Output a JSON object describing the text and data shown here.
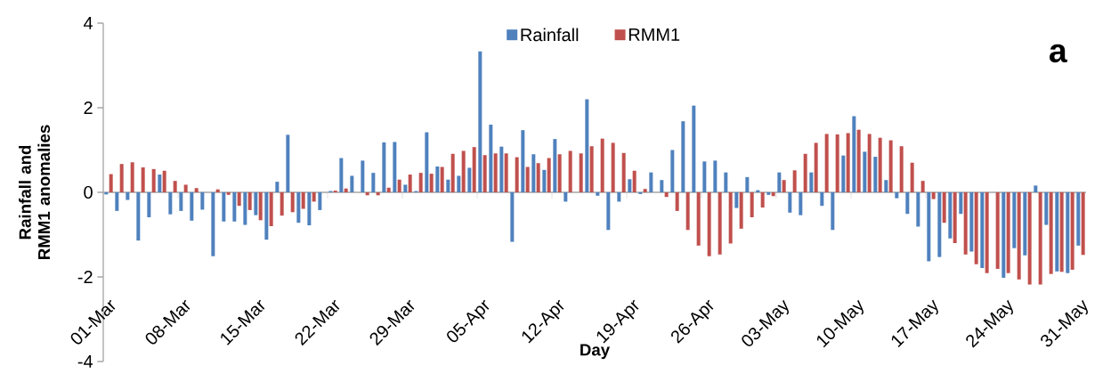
{
  "chart_data": {
    "type": "bar",
    "xlabel": "Day",
    "ylabel": "Rainfall and RMM1 anomalies",
    "categories": [
      "01-Mar",
      null,
      null,
      null,
      null,
      null,
      null,
      "08-Mar",
      null,
      null,
      null,
      null,
      null,
      null,
      "15-Mar",
      null,
      null,
      null,
      null,
      null,
      null,
      "22-Mar",
      null,
      null,
      null,
      null,
      null,
      null,
      "29-Mar",
      null,
      null,
      null,
      null,
      null,
      null,
      "05-Apr",
      null,
      null,
      null,
      null,
      null,
      null,
      "12-Apr",
      null,
      null,
      null,
      null,
      null,
      null,
      "19-Apr",
      null,
      null,
      null,
      null,
      null,
      null,
      "26-Apr",
      null,
      null,
      null,
      null,
      null,
      null,
      "03-May",
      null,
      null,
      null,
      null,
      null,
      null,
      "10-May",
      null,
      null,
      null,
      null,
      null,
      null,
      "17-May",
      null,
      null,
      null,
      null,
      null,
      null,
      "24-May",
      null,
      null,
      null,
      null,
      null,
      null,
      "31-May"
    ],
    "series": [
      {
        "name": "Rainfall",
        "color": "#4f81bd",
        "values": [
          -0.05,
          -0.44,
          -0.18,
          -1.14,
          -0.59,
          0.42,
          -0.52,
          -0.44,
          -0.67,
          -0.41,
          -1.51,
          -0.69,
          -0.69,
          -0.77,
          -0.54,
          -1.12,
          0.25,
          1.36,
          -0.72,
          -0.78,
          -0.42,
          0.03,
          0.81,
          0.39,
          0.75,
          0.46,
          1.18,
          1.19,
          0.18,
          0.03,
          1.42,
          0.61,
          0.3,
          0.39,
          0.58,
          3.33,
          1.6,
          1.08,
          -1.17,
          1.47,
          0.9,
          0.53,
          1.26,
          -0.22,
          0,
          2.2,
          -0.08,
          -0.89,
          -0.22,
          0.31,
          -0.04,
          0.47,
          0.29,
          1.0,
          1.68,
          2.05,
          0.73,
          0.75,
          0.47,
          -0.37,
          0.36,
          0.05,
          -0.06,
          0.47,
          -0.48,
          -0.54,
          0.47,
          -0.32,
          -0.89,
          0.87,
          1.8,
          0.96,
          0.84,
          0.29,
          -0.14,
          -0.51,
          -0.81,
          -1.63,
          -1.53,
          -1.09,
          -0.51,
          -1.4,
          -1.79,
          0,
          -2.02,
          -1.32,
          -1.49,
          0.16,
          -0.77,
          -1.87,
          -1.91,
          -1.26
        ]
      },
      {
        "name": "RMM1",
        "color": "#c0504d",
        "values": [
          0.43,
          0.67,
          0.71,
          0.59,
          0.55,
          0.51,
          0.27,
          0.18,
          0.1,
          null,
          0.07,
          -0.06,
          -0.32,
          -0.42,
          -0.66,
          -0.8,
          -0.55,
          -0.47,
          -0.39,
          -0.22,
          0,
          0.04,
          0.09,
          0,
          -0.07,
          -0.07,
          0.11,
          0.3,
          0.42,
          0.46,
          0.44,
          0.6,
          0.91,
          0.98,
          1.07,
          0.88,
          0.92,
          0.92,
          0.83,
          0.6,
          0.69,
          0.81,
          0.9,
          0.98,
          0.92,
          1.09,
          1.27,
          1.17,
          0.93,
          0.51,
          0.08,
          0,
          -0.11,
          -0.44,
          -0.89,
          -1.26,
          -1.51,
          -1.47,
          -1.21,
          -0.86,
          -0.59,
          -0.36,
          -0.09,
          0.29,
          0.52,
          0.91,
          1.17,
          1.38,
          1.37,
          1.4,
          1.48,
          1.38,
          1.29,
          1.23,
          1.09,
          0.7,
          0.27,
          -0.16,
          -0.72,
          -1.2,
          -1.47,
          -1.7,
          -1.91,
          -1.81,
          -1.91,
          -2.06,
          -2.18,
          -2.18,
          -1.93,
          -1.88,
          -1.83,
          -1.48
        ]
      }
    ],
    "ylim": [
      -4,
      4
    ],
    "yticks": [
      -4,
      -2,
      0,
      2,
      4
    ],
    "legend": "top",
    "annotations": [
      "a"
    ]
  }
}
